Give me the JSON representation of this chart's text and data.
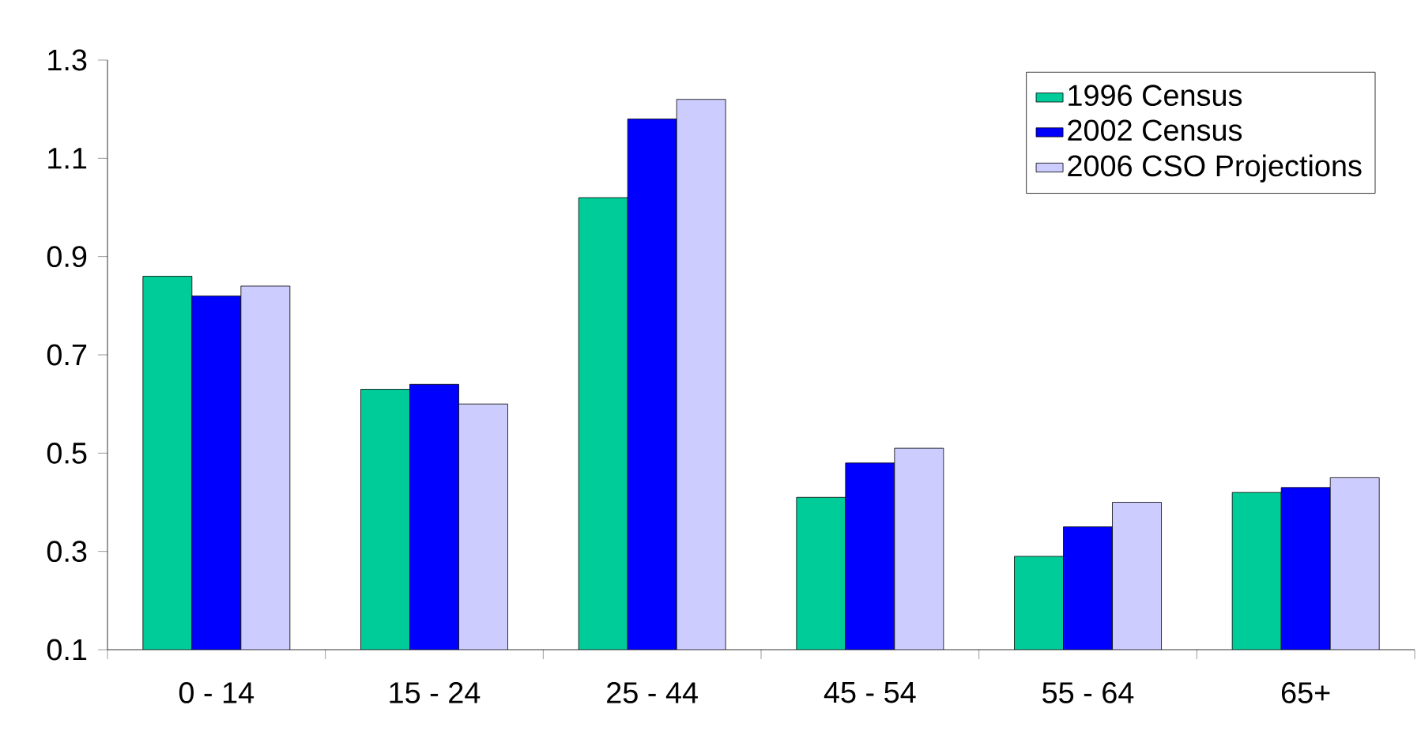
{
  "chart_data": {
    "type": "bar",
    "categories": [
      "0 - 14",
      "15 - 24",
      "25 - 44",
      "45 - 54",
      "55 - 64",
      "65+"
    ],
    "series": [
      {
        "name": "1996 Census",
        "color": "#00cc99",
        "values": [
          0.86,
          0.63,
          1.02,
          0.41,
          0.29,
          0.42
        ]
      },
      {
        "name": "2002 Census",
        "color": "#0000ff",
        "values": [
          0.82,
          0.64,
          1.18,
          0.48,
          0.35,
          0.43
        ]
      },
      {
        "name": "2006 CSO Projections",
        "color": "#ccccff",
        "values": [
          0.84,
          0.6,
          1.22,
          0.51,
          0.4,
          0.45
        ]
      }
    ],
    "ylim": [
      0.1,
      1.3
    ],
    "yticks": [
      0.1,
      0.3,
      0.5,
      0.7,
      0.9,
      1.1,
      1.3
    ],
    "grid": false,
    "legend": "top right"
  }
}
